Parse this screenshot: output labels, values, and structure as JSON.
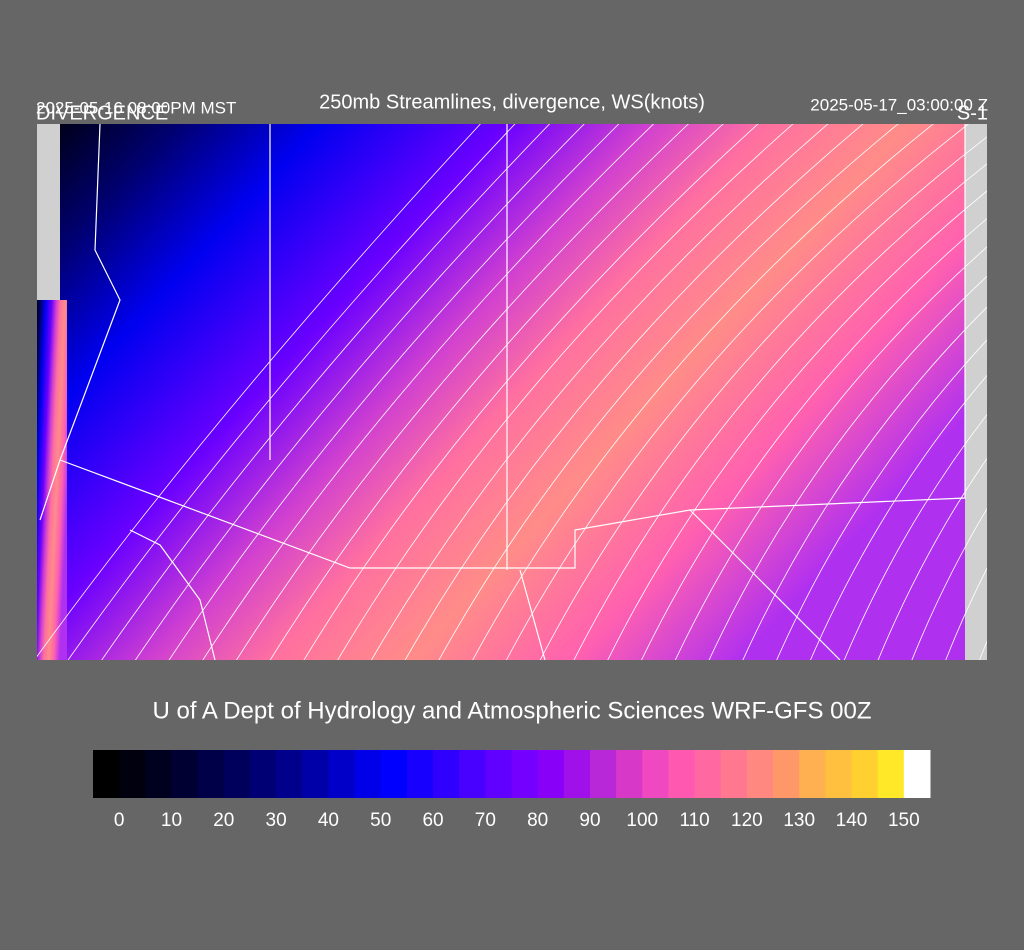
{
  "header": {
    "valid_local": "2025-05-16 08:00PM MST",
    "field": "DIVERGENCE",
    "title": "250mb Streamlines, divergence, WS(knots)",
    "valid_utc": "2025-05-17_03:00:00 Z",
    "level": "S-1"
  },
  "footer": {
    "credit": "U of A Dept of Hydrology and Atmospheric Sciences WRF-GFS 00Z"
  },
  "colorbar": {
    "colors": [
      "#000000",
      "#00000f",
      "#00001f",
      "#000033",
      "#000048",
      "#00005c",
      "#000074",
      "#00008c",
      "#0000a8",
      "#0000c8",
      "#0000e8",
      "#0000ff",
      "#1800ff",
      "#3000ff",
      "#4800ff",
      "#6000ff",
      "#7400ff",
      "#8800f8",
      "#a010e8",
      "#b828d8",
      "#d838c8",
      "#f048c0",
      "#ff58b0",
      "#ff68a0",
      "#ff7890",
      "#ff8880",
      "#ff9868",
      "#ffb050",
      "#ffc040",
      "#ffd030",
      "#ffe828",
      "#ffff00",
      "#ffff40",
      "#ffff90",
      "#ffffff"
    ],
    "labels": [
      0,
      10,
      20,
      30,
      40,
      50,
      60,
      70,
      80,
      90,
      100,
      110,
      120,
      130,
      140,
      150
    ]
  }
}
